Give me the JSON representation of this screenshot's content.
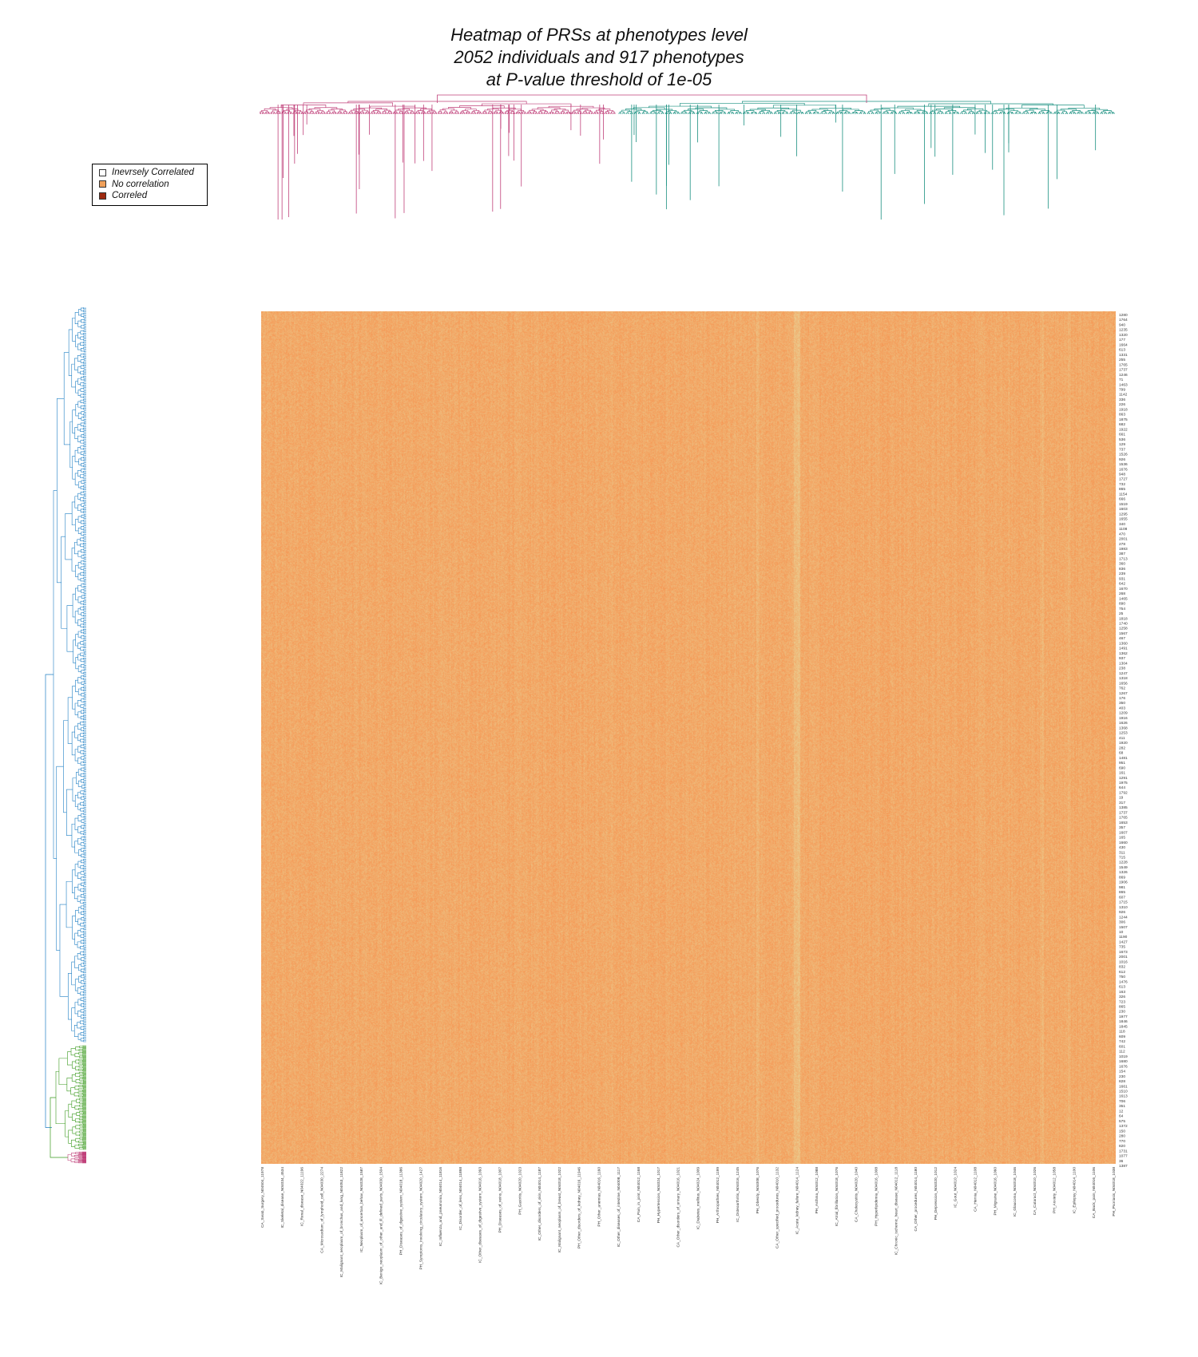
{
  "chart_data": {
    "type": "heatmap",
    "title": [
      "Heatmap of PRSs at phenotypes level",
      "2052 individuals and 917 phenotypes",
      "at P-value threshold of 1e-05"
    ],
    "n_rows": 2052,
    "n_cols": 917,
    "legend": [
      {
        "label": "Inevrsely Correlated",
        "color": "#ffffff"
      },
      {
        "label": "No correlation",
        "color": "#f0a05a"
      },
      {
        "label": "Correled",
        "color": "#9e2a10"
      }
    ],
    "column_dendrogram_colors": [
      "#c0407a",
      "#1a9080"
    ],
    "row_dendrogram_colors": [
      "#1f7fc4",
      "#3a9a1e",
      "#c0407a"
    ],
    "row_labels": [
      "1280",
      "1764",
      "940",
      "1235",
      "1320",
      "177",
      "1664",
      "613",
      "1331",
      "255",
      "1765",
      "1737",
      "1246",
      "71",
      "1463",
      "799",
      "1142",
      "336",
      "226",
      "1918",
      "863",
      "1875",
      "682",
      "1922",
      "661",
      "536",
      "129",
      "737",
      "1526",
      "926",
      "1536",
      "1676",
      "948",
      "1727",
      "732",
      "865",
      "1154",
      "666",
      "1519",
      "1603",
      "1295",
      "1655",
      "340",
      "1108",
      "470",
      "2001",
      "278",
      "1983",
      "387",
      "1713",
      "360",
      "836",
      "239",
      "931",
      "642",
      "1670",
      "268",
      "1465",
      "890",
      "754",
      "25",
      "1818",
      "1740",
      "1258",
      "1567",
      "467",
      "1360",
      "1491",
      "1362",
      "937",
      "1304",
      "238",
      "1247",
      "1318",
      "1656",
      "762",
      "1267",
      "176",
      "350",
      "403",
      "1209",
      "1916",
      "1626",
      "1368",
      "1253",
      "411",
      "1920",
      "282",
      "68",
      "1481",
      "951",
      "690",
      "161",
      "1291",
      "1975",
      "644",
      "1792",
      "19",
      "317",
      "1385",
      "1737",
      "1765",
      "1653",
      "357",
      "1607",
      "165",
      "1660",
      "430",
      "311",
      "715",
      "1228",
      "1549",
      "1326",
      "869",
      "1906",
      "981",
      "865",
      "607",
      "1715",
      "1310",
      "926",
      "1244",
      "306",
      "1507",
      "10",
      "1190",
      "1427",
      "735",
      "1673",
      "2001",
      "1016",
      "832",
      "612",
      "750",
      "1476",
      "613",
      "163",
      "326",
      "723",
      "865",
      "230",
      "1977",
      "1846",
      "1845",
      "118",
      "609",
      "742",
      "601",
      "112",
      "1019",
      "1680",
      "1676",
      "154",
      "230",
      "828",
      "1661",
      "1510",
      "1613",
      "706",
      "351",
      "12",
      "64",
      "575",
      "1372",
      "150",
      "280",
      "770",
      "820",
      "1731",
      "1077",
      "36",
      "1387"
    ],
    "column_labels": [
      "CA_Swab_Surgery_N04504_11978",
      "IC_Skeletal_disease_N04034_4534",
      "IC_Renal_disease_N04022_11196",
      "CA_Microsodium_of_lymphoid_cell_N04030_2274",
      "IC_Malignant_neoplasm_of_bronchus_and_lung_N04053_11822",
      "IC_Neoplasm_of_uncertain_behav_N04028_1587",
      "IC_Benign_neoplasm_of_other_and_ill_defined_parts_N04030_1504",
      "PH_Diseases_of_digestive_system_N04018_11386",
      "PH_Symptoms_involving_circulatory_system_N04020_1427",
      "IC_Influenza_and_pneumonia_N04014_11816",
      "IC_Disorder_of_lens_N04014_11898",
      "IC_Other_diseases_of_digestive_system_N04016_1093",
      "PH_Diseases_of_veins_N04018_1007",
      "PH_Gastritis_N04020_1023",
      "IC_Other_disorders_of_skin_N04014_1187",
      "IC_Malignant_neoplasm_of_breast_N04018_1022",
      "PH_Other_disorders_of_kidney_N04016_11946",
      "PH_Other_anemias_N04016_1160",
      "IC_Other_diseases_of_intestine_N04008_1117",
      "CA_Pain_in_joint_N04012_1168",
      "PH_Hypertension_N04024_1017",
      "CA_Other_disorders_of_urinary_N04016_1021",
      "IC_Diabetes_mellitus_N04024_1009",
      "PH_Arthropathies_N04012_1199",
      "IC_Osteoarthritis_N04016_1245",
      "PH_Obesity_N04008_1076",
      "CA_Other_specified_procedures_N04010_1132",
      "IC_Acute_kidney_failure_N04014_1124",
      "PH_Asthma_N04012_1088",
      "IC_Atrial_fibrillation_N04018_1076",
      "CA_Cholecystitis_N04020_1040",
      "PH_Hyperlipidemia_N04016_1008",
      "IC_Chronic_ischemic_heart_disease_N04012_1118",
      "CA_Other_procedures_N04014_1180",
      "PH_Depression_N04020_1012",
      "IC_Gout_N04010_1024",
      "CA_Hernia_N04012_1108",
      "PH_Migraine_N04016_1060",
      "IC_Glaucoma_N04018_1046",
      "CA_Cataract_N04010_1026",
      "PH_Anxiety_N04012_1058",
      "IC_Epilepsy_N04014_1100",
      "CA_Back_pain_N04016_1106",
      "PH_Psoriasis_N04018_1038"
    ]
  }
}
